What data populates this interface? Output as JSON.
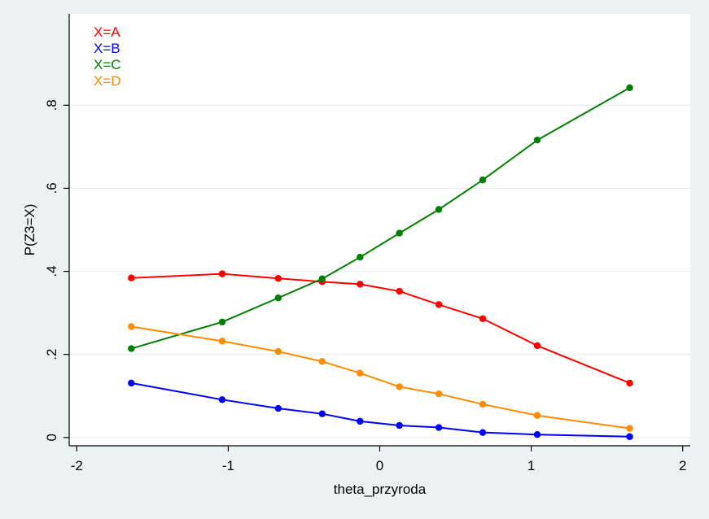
{
  "colors": {
    "background": "#eaf2f3",
    "plot_background": "#ffffff",
    "gridline": "#e6eef0",
    "axis": "#000000"
  },
  "chart_data": {
    "type": "line",
    "title": "",
    "xlabel": "theta_przyroda",
    "ylabel": "P(Z3=X)",
    "xlim": [
      -2.05,
      2.05
    ],
    "ylim": [
      -0.02,
      1.02
    ],
    "xticks": [
      -2,
      -1,
      0,
      1,
      2
    ],
    "xtick_labels": [
      "-2",
      "-1",
      "0",
      "1",
      "2"
    ],
    "yticks": [
      0,
      0.2,
      0.4,
      0.6,
      0.8
    ],
    "ytick_labels": [
      "0",
      ".2",
      ".4",
      ".6",
      ".8"
    ],
    "grid": "horizontal",
    "legend_position": "top-left",
    "x": [
      -1.64,
      -1.04,
      -0.67,
      -0.38,
      -0.13,
      0.13,
      0.39,
      0.68,
      1.04,
      1.65
    ],
    "series": [
      {
        "name": "X=A",
        "color": "#ff0000",
        "values": [
          0.384,
          0.394,
          0.383,
          0.375,
          0.369,
          0.352,
          0.32,
          0.286,
          0.221,
          0.131
        ]
      },
      {
        "name": "X=B",
        "color": "#0000ff",
        "values": [
          0.131,
          0.091,
          0.07,
          0.057,
          0.039,
          0.029,
          0.024,
          0.012,
          0.007,
          0.002
        ]
      },
      {
        "name": "X=C",
        "color": "#008000",
        "values": [
          0.214,
          0.278,
          0.336,
          0.382,
          0.434,
          0.492,
          0.549,
          0.62,
          0.716,
          0.842
        ]
      },
      {
        "name": "X=D",
        "color": "#ff8c00",
        "values": [
          0.267,
          0.232,
          0.207,
          0.183,
          0.155,
          0.122,
          0.105,
          0.08,
          0.053,
          0.022
        ]
      }
    ]
  }
}
